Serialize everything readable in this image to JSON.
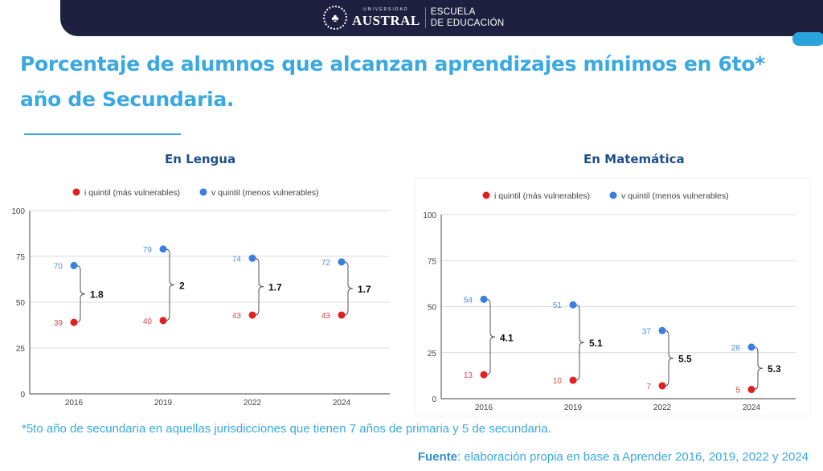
{
  "header": {
    "seal_icon": "university-seal",
    "university_small": "UNIVERSIDAD",
    "university_name": "AUSTRAL",
    "school_line1": "ESCUELA",
    "school_line2": "DE EDUCACIÓN"
  },
  "title": "Porcentaje de alumnos que alcanzan aprendizajes mínimos en 6to* año de Secundaria.",
  "colors": {
    "red": "#e0201e",
    "blue": "#3a7fe0",
    "title": "#39a9e0",
    "chart_title": "#1e4f8a",
    "navy": "#1f2040"
  },
  "chart_data": [
    {
      "type": "scatter",
      "title": "En Lengua",
      "x": [
        "2016",
        "2019",
        "2022",
        "2024"
      ],
      "series": [
        {
          "name": "i quintil (más vulnerables)",
          "color": "#e0201e",
          "values": [
            39,
            40,
            43,
            43
          ]
        },
        {
          "name": "v quintil (menos vulnerables)",
          "color": "#3a7fe0",
          "values": [
            70,
            79,
            74,
            72
          ]
        }
      ],
      "annotations": [
        "1.8",
        "2",
        "1.7",
        "1.7"
      ],
      "yticks": [
        0,
        25,
        50,
        75,
        100
      ],
      "ylim": [
        0,
        100
      ],
      "grid": true,
      "legend": "top"
    },
    {
      "type": "scatter",
      "title": "En Matemática",
      "x": [
        "2016",
        "2019",
        "2022",
        "2024"
      ],
      "series": [
        {
          "name": "i quintil (más vulnerables)",
          "color": "#e0201e",
          "values": [
            13,
            10,
            7,
            5
          ]
        },
        {
          "name": "v quintil (menos vulnerables)",
          "color": "#3a7fe0",
          "values": [
            54,
            51,
            37,
            28
          ]
        }
      ],
      "annotations": [
        "4.1",
        "5.1",
        "5.5",
        "5.3"
      ],
      "yticks": [
        0,
        25,
        50,
        75,
        100
      ],
      "ylim": [
        0,
        100
      ],
      "grid": true,
      "legend": "top"
    }
  ],
  "footnote": "*5to año de secundaria en aquellas jurisdicciones que tienen 7 años de primaria y 5 de secundaria.",
  "source": {
    "label": "Fuente",
    "text": ": elaboración propia en base a Aprender 2016, 2019, 2022 y 2024"
  }
}
